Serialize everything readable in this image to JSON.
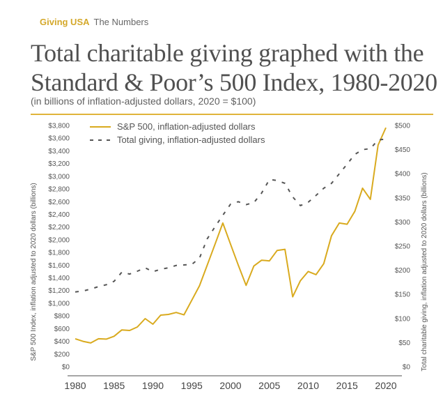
{
  "header": {
    "brand": "Giving USA",
    "section": "The Numbers",
    "title_line1": "Total charitable giving graphed with the",
    "title_line2": "Standard & Poor’s 500 Index, 1980-2020",
    "subtitle": "(in billions of inflation-adjusted dollars, 2020 = $100)"
  },
  "colors": {
    "accent": "#d4a82a",
    "sp500_line": "#d9aa1e",
    "giving_line": "#555555",
    "rule": "#e0b43a"
  },
  "chart_data": {
    "type": "line",
    "title": "Total charitable giving graphed with the Standard & Poor’s 500 Index, 1980-2020",
    "subtitle": "(in billions of inflation-adjusted dollars, 2020 = $100)",
    "xlabel": "",
    "ylabel_left": "S&P 500 Index, inflation adjusted to 2020 dollars (billions)",
    "ylabel_right": "Total charitable giving, inflation adjusted to 2020 dollars (billions)",
    "xlim": [
      1980,
      2020
    ],
    "ylim_left": [
      0,
      3800
    ],
    "ylim_right": [
      0,
      500
    ],
    "x_ticks": [
      "1980",
      "1985",
      "1990",
      "1995",
      "2000",
      "2005",
      "2010",
      "2015",
      "2020"
    ],
    "y_ticks_left": [
      "$0",
      "$200",
      "$400",
      "$600",
      "$800",
      "$1,000",
      "$1,200",
      "$1,400",
      "$1,600",
      "$1,800",
      "$2,000",
      "$2,200",
      "$2,400",
      "$2,600",
      "$2,800",
      "$3,000",
      "$3,200",
      "$3,400",
      "$3,600",
      "$3,800"
    ],
    "y_ticks_right": [
      "$0",
      "$50",
      "$100",
      "$150",
      "$200",
      "$250",
      "$300",
      "$350",
      "$400",
      "$450",
      "$500"
    ],
    "grid": false,
    "legend_position": "top-left",
    "x": [
      1980,
      1981,
      1982,
      1983,
      1984,
      1985,
      1986,
      1987,
      1988,
      1989,
      1990,
      1991,
      1992,
      1993,
      1994,
      1995,
      1996,
      1997,
      1998,
      1999,
      2000,
      2001,
      2002,
      2003,
      2004,
      2005,
      2006,
      2007,
      2008,
      2009,
      2010,
      2011,
      2012,
      2013,
      2014,
      2015,
      2016,
      2017,
      2018,
      2019,
      2020
    ],
    "series": [
      {
        "name": "S&P 500, inflation-adjusted dollars",
        "axis": "left",
        "style": "solid",
        "values": [
          440,
          400,
          375,
          440,
          435,
          480,
          580,
          571,
          626,
          758,
          670,
          813,
          824,
          854,
          817,
          1047,
          1275,
          1600,
          1930,
          2264,
          1930,
          1600,
          1282,
          1586,
          1678,
          1667,
          1832,
          1850,
          1102,
          1355,
          1500,
          1451,
          1623,
          2062,
          2264,
          2245,
          2447,
          2813,
          2637,
          3491,
          3766
        ]
      },
      {
        "name": "Total giving, inflation-adjusted dollars",
        "axis": "right",
        "style": "dashed",
        "values": [
          155,
          157,
          161,
          166,
          170,
          177,
          196,
          192,
          198,
          205,
          197,
          202,
          205,
          210,
          211,
          212,
          225,
          265,
          290,
          314,
          337,
          342,
          336,
          340,
          360,
          388,
          386,
          380,
          352,
          334,
          341,
          355,
          370,
          380,
          400,
          420,
          440,
          450,
          452,
          470,
          472
        ]
      }
    ]
  }
}
